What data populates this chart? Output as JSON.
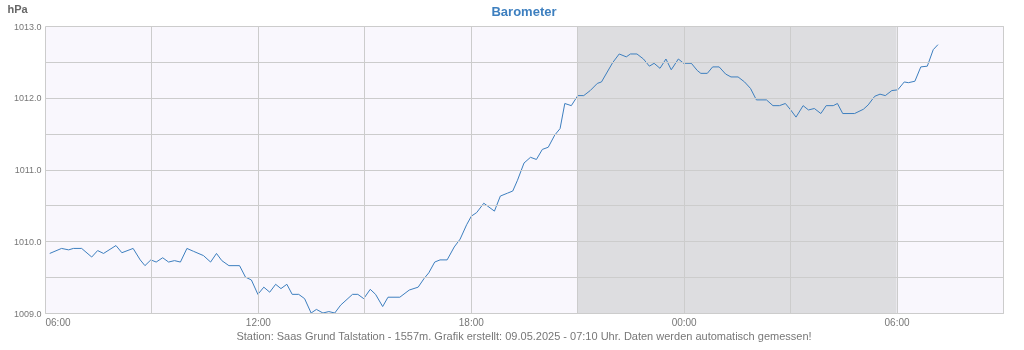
{
  "chart_data": {
    "type": "line",
    "title": "Barometer",
    "ylabel": "hPa",
    "x": [
      "2025-05-08T06:08",
      "2025-05-08T06:28",
      "2025-05-08T06:40",
      "2025-05-08T06:48",
      "2025-05-08T07:02",
      "2025-05-08T07:19",
      "2025-05-08T07:29",
      "2025-05-08T07:39",
      "2025-05-08T08:00",
      "2025-05-08T08:10",
      "2025-05-08T08:29",
      "2025-05-08T08:41",
      "2025-05-08T08:49",
      "2025-05-08T08:59",
      "2025-05-08T09:08",
      "2025-05-08T09:19",
      "2025-05-08T09:29",
      "2025-05-08T09:39",
      "2025-05-08T09:49",
      "2025-05-08T10:00",
      "2025-05-08T10:11",
      "2025-05-08T10:28",
      "2025-05-08T10:40",
      "2025-05-08T10:50",
      "2025-05-08T10:59",
      "2025-05-08T11:11",
      "2025-05-08T11:29",
      "2025-05-08T11:39",
      "2025-05-08T11:49",
      "2025-05-08T12:00",
      "2025-05-08T12:10",
      "2025-05-08T12:20",
      "2025-05-08T12:30",
      "2025-05-08T12:39",
      "2025-05-08T12:49",
      "2025-05-08T12:58",
      "2025-05-08T13:09",
      "2025-05-08T13:19",
      "2025-05-08T13:30",
      "2025-05-08T13:39",
      "2025-05-08T13:50",
      "2025-05-08T14:00",
      "2025-05-08T14:10",
      "2025-05-08T14:20",
      "2025-05-08T14:40",
      "2025-05-08T14:49",
      "2025-05-08T14:59",
      "2025-05-08T15:10",
      "2025-05-08T15:19",
      "2025-05-08T15:31",
      "2025-05-08T15:40",
      "2025-05-08T16:00",
      "2025-05-08T16:16",
      "2025-05-08T16:31",
      "2025-05-08T16:41",
      "2025-05-08T16:49",
      "2025-05-08T16:59",
      "2025-05-08T17:08",
      "2025-05-08T17:20",
      "2025-05-08T17:32",
      "2025-05-08T17:42",
      "2025-05-08T17:53",
      "2025-05-08T18:01",
      "2025-05-08T18:10",
      "2025-05-08T18:22",
      "2025-05-08T18:40",
      "2025-05-08T18:50",
      "2025-05-08T19:02",
      "2025-05-08T19:11",
      "2025-05-08T19:19",
      "2025-05-08T19:30",
      "2025-05-08T19:41",
      "2025-05-08T19:51",
      "2025-05-08T20:01",
      "2025-05-08T20:11",
      "2025-05-08T20:22",
      "2025-05-08T20:31",
      "2025-05-08T20:39",
      "2025-05-08T20:50",
      "2025-05-08T21:01",
      "2025-05-08T21:11",
      "2025-05-08T21:22",
      "2025-05-08T21:34",
      "2025-05-08T21:41",
      "2025-05-08T22:00",
      "2025-05-08T22:11",
      "2025-05-08T22:23",
      "2025-05-08T22:30",
      "2025-05-08T22:41",
      "2025-05-08T22:52",
      "2025-05-08T23:02",
      "2025-05-08T23:10",
      "2025-05-08T23:20",
      "2025-05-08T23:30",
      "2025-05-08T23:39",
      "2025-05-08T23:51",
      "2025-05-09T00:00",
      "2025-05-09T00:13",
      "2025-05-09T00:23",
      "2025-05-09T00:29",
      "2025-05-09T00:40",
      "2025-05-09T00:49",
      "2025-05-09T01:00",
      "2025-05-09T01:11",
      "2025-05-09T01:20",
      "2025-05-09T01:32",
      "2025-05-09T01:43",
      "2025-05-09T01:53",
      "2025-05-09T02:03",
      "2025-05-09T02:20",
      "2025-05-09T02:31",
      "2025-05-09T02:42",
      "2025-05-09T02:52",
      "2025-05-09T03:01",
      "2025-05-09T03:10",
      "2025-05-09T03:22",
      "2025-05-09T03:31",
      "2025-05-09T03:41",
      "2025-05-09T03:52",
      "2025-05-09T04:01",
      "2025-05-09T04:13",
      "2025-05-09T04:20",
      "2025-05-09T04:29",
      "2025-05-09T04:49",
      "2025-05-09T05:04",
      "2025-05-09T05:12",
      "2025-05-09T05:23",
      "2025-05-09T05:32",
      "2025-05-09T05:41",
      "2025-05-09T05:52",
      "2025-05-09T06:02",
      "2025-05-09T06:13",
      "2025-05-09T06:20",
      "2025-05-09T06:31",
      "2025-05-09T06:41",
      "2025-05-09T06:52",
      "2025-05-09T07:02",
      "2025-05-09T07:10"
    ],
    "series": [
      {
        "color": "#3d7fbf",
        "values": [
          1009.83,
          1009.9,
          1009.88,
          1009.9,
          1009.9,
          1009.78,
          1009.87,
          1009.83,
          1009.94,
          1009.84,
          1009.9,
          1009.74,
          1009.66,
          1009.74,
          1009.71,
          1009.77,
          1009.71,
          1009.73,
          1009.71,
          1009.9,
          1009.86,
          1009.8,
          1009.71,
          1009.83,
          1009.73,
          1009.66,
          1009.66,
          1009.5,
          1009.46,
          1009.26,
          1009.36,
          1009.29,
          1009.4,
          1009.34,
          1009.4,
          1009.26,
          1009.26,
          1009.2,
          1009.0,
          1009.05,
          1009.0,
          1009.02,
          1009.0,
          1009.11,
          1009.26,
          1009.26,
          1009.2,
          1009.33,
          1009.26,
          1009.09,
          1009.22,
          1009.22,
          1009.32,
          1009.36,
          1009.48,
          1009.56,
          1009.71,
          1009.74,
          1009.74,
          1009.92,
          1010.03,
          1010.23,
          1010.35,
          1010.4,
          1010.53,
          1010.42,
          1010.63,
          1010.67,
          1010.7,
          1010.85,
          1011.09,
          1011.17,
          1011.14,
          1011.28,
          1011.31,
          1011.48,
          1011.57,
          1011.92,
          1011.89,
          1012.03,
          1012.03,
          1012.1,
          1012.2,
          1012.22,
          1012.49,
          1012.61,
          1012.57,
          1012.61,
          1012.61,
          1012.54,
          1012.44,
          1012.48,
          1012.41,
          1012.54,
          1012.39,
          1012.54,
          1012.48,
          1012.48,
          1012.38,
          1012.34,
          1012.34,
          1012.43,
          1012.43,
          1012.33,
          1012.29,
          1012.29,
          1012.22,
          1012.13,
          1011.97,
          1011.97,
          1011.89,
          1011.89,
          1011.92,
          1011.83,
          1011.73,
          1011.89,
          1011.83,
          1011.85,
          1011.78,
          1011.89,
          1011.89,
          1011.92,
          1011.78,
          1011.78,
          1011.84,
          1011.9,
          1012.02,
          1012.05,
          1012.03,
          1012.1,
          1012.11,
          1012.22,
          1012.21,
          1012.23,
          1012.43,
          1012.44,
          1012.67,
          1012.74
        ]
      }
    ],
    "xlim": [
      "2025-05-08T06:00",
      "2025-05-09T09:00"
    ],
    "xticks": [
      {
        "value": "2025-05-08T06:00",
        "label": "06:00"
      },
      {
        "value": "2025-05-08T09:00",
        "label": null
      },
      {
        "value": "2025-05-08T12:00",
        "label": "12:00"
      },
      {
        "value": "2025-05-08T15:00",
        "label": null
      },
      {
        "value": "2025-05-08T18:00",
        "label": "18:00"
      },
      {
        "value": "2025-05-08T21:00",
        "label": null
      },
      {
        "value": "2025-05-09T00:00",
        "label": "00:00"
      },
      {
        "value": "2025-05-09T03:00",
        "label": null
      },
      {
        "value": "2025-05-09T06:00",
        "label": "06:00"
      },
      {
        "value": "2025-05-09T09:00",
        "label": null
      }
    ],
    "ylim": [
      1009,
      1013
    ],
    "yticks": [
      {
        "value": 1009,
        "label": "1009.0"
      },
      {
        "value": 1009.5,
        "label": null
      },
      {
        "value": 1010,
        "label": "1010.0"
      },
      {
        "value": 1010.5,
        "label": null
      },
      {
        "value": 1011,
        "label": "1011.0"
      },
      {
        "value": 1011.5,
        "label": null
      },
      {
        "value": 1012,
        "label": "1012.0"
      },
      {
        "value": 1012.5,
        "label": null
      },
      {
        "value": 1013,
        "label": "1013.0"
      }
    ],
    "grid": true,
    "bands": [
      {
        "axis": "x",
        "from": "2025-05-08T21:00",
        "to": "2025-05-09T06:00",
        "color": "#dddde0"
      }
    ],
    "annotations": [
      "Station: Saas Grund Talstation - 1557m. Grafik erstellt: 09.05.2025 - 07:10 Uhr. Daten werden automatisch gemessen!"
    ]
  }
}
